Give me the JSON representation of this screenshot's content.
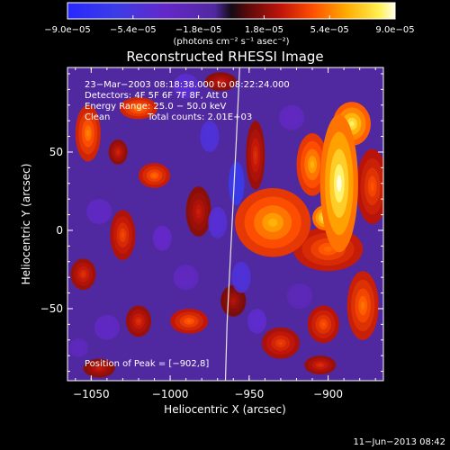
{
  "chart_data": {
    "type": "heatmap",
    "title": "Reconstructed RHESSI Image",
    "xlabel": "Heliocentric X (arcsec)",
    "ylabel": "Heliocentric Y (arcsec)",
    "xlim": [
      -1065,
      -865
    ],
    "ylim": [
      -96,
      104
    ],
    "xticks": [
      {
        "value": -1050,
        "label": "−1050"
      },
      {
        "value": -1000,
        "label": "−1000"
      },
      {
        "value": -950,
        "label": "−950"
      },
      {
        "value": -900,
        "label": "−900"
      }
    ],
    "yticks": [
      {
        "value": 50,
        "label": "50"
      },
      {
        "value": 0,
        "label": "0"
      },
      {
        "value": -50,
        "label": "−50"
      }
    ],
    "colorbar": {
      "range": [
        -9e-05,
        9e-05
      ],
      "unit_label": "(photons cm⁻² s⁻¹ asec⁻²)",
      "ticks": [
        {
          "value": -9e-05,
          "label": "−9.0e−05"
        },
        {
          "value": -5.4e-05,
          "label": "−5.4e−05"
        },
        {
          "value": -1.8e-05,
          "label": "−1.8e−05"
        },
        {
          "value": 1.8e-05,
          "label": "1.8e−05"
        },
        {
          "value": 5.4e-05,
          "label": "5.4e−05"
        },
        {
          "value": 9e-05,
          "label": "9.0e−05"
        }
      ]
    },
    "annotations": {
      "time_range": "23−Mar−2003 08:18:38.000 to 08:22:24.000",
      "detectors": "Detectors: 4F 5F 6F 7F 8F, Att 0",
      "energy_range": "Energy Range: 25.0 − 50.0 keV",
      "method": "Clean",
      "total_counts": "Total counts: 2.01E+03",
      "peak": "Position of Peak = [−902,8]"
    },
    "limb_curve": [
      [
        -956,
        104
      ],
      [
        -958,
        60
      ],
      [
        -960,
        20
      ],
      [
        -962,
        -20
      ],
      [
        -964,
        -60
      ],
      [
        -965,
        -96
      ]
    ],
    "blobs": [
      {
        "x": -893,
        "y": 30,
        "w": 12,
        "h": 44,
        "v": 9e-05
      },
      {
        "x": -902,
        "y": 8,
        "w": 8,
        "h": 8,
        "v": 8.8e-05
      },
      {
        "x": -885,
        "y": 68,
        "w": 12,
        "h": 14,
        "v": 8.2e-05
      },
      {
        "x": -910,
        "y": 42,
        "w": 10,
        "h": 20,
        "v": 6.5e-05
      },
      {
        "x": -935,
        "y": 5,
        "w": 24,
        "h": 22,
        "v": 6.5e-05
      },
      {
        "x": -900,
        "y": -12,
        "w": 22,
        "h": 14,
        "v": 5e-05
      },
      {
        "x": -872,
        "y": 28,
        "w": 10,
        "h": 24,
        "v": 4.5e-05
      },
      {
        "x": -878,
        "y": -48,
        "w": 10,
        "h": 22,
        "v": 5.2e-05
      },
      {
        "x": -903,
        "y": -60,
        "w": 10,
        "h": 12,
        "v": 4.5e-05
      },
      {
        "x": -930,
        "y": -72,
        "w": 12,
        "h": 10,
        "v": 4e-05
      },
      {
        "x": -905,
        "y": -86,
        "w": 10,
        "h": 6,
        "v": 3.5e-05
      },
      {
        "x": -946,
        "y": 48,
        "w": 6,
        "h": 22,
        "v": 3.5e-05
      },
      {
        "x": -1052,
        "y": 62,
        "w": 8,
        "h": 18,
        "v": 5.5e-05
      },
      {
        "x": -1020,
        "y": 78,
        "w": 12,
        "h": 7,
        "v": 5.5e-05
      },
      {
        "x": -1010,
        "y": 35,
        "w": 10,
        "h": 8,
        "v": 5e-05
      },
      {
        "x": -1033,
        "y": 50,
        "w": 6,
        "h": 8,
        "v": 3.2e-05
      },
      {
        "x": -1030,
        "y": -3,
        "w": 8,
        "h": 16,
        "v": 4.2e-05
      },
      {
        "x": -982,
        "y": 12,
        "w": 8,
        "h": 16,
        "v": 3e-05
      },
      {
        "x": -988,
        "y": -58,
        "w": 12,
        "h": 8,
        "v": 4.8e-05
      },
      {
        "x": -1020,
        "y": -58,
        "w": 8,
        "h": 10,
        "v": 3.5e-05
      },
      {
        "x": -1055,
        "y": -28,
        "w": 8,
        "h": 10,
        "v": 3.6e-05
      },
      {
        "x": -1045,
        "y": -88,
        "w": 10,
        "h": 6,
        "v": 3e-05
      },
      {
        "x": -960,
        "y": -45,
        "w": 8,
        "h": 10,
        "v": 2.5e-05
      },
      {
        "x": -968,
        "y": 95,
        "w": 10,
        "h": 6,
        "v": 3e-05
      },
      {
        "x": -958,
        "y": 30,
        "w": 5,
        "h": 14,
        "v": -6.5e-05
      },
      {
        "x": -975,
        "y": 60,
        "w": 6,
        "h": 10,
        "v": -5e-05
      },
      {
        "x": -970,
        "y": 5,
        "w": 6,
        "h": 10,
        "v": -4.5e-05
      },
      {
        "x": -955,
        "y": -30,
        "w": 6,
        "h": 10,
        "v": -5e-05
      },
      {
        "x": -990,
        "y": 92,
        "w": 8,
        "h": 8,
        "v": -4.2e-05
      },
      {
        "x": -1005,
        "y": -5,
        "w": 6,
        "h": 8,
        "v": -3.6e-05
      },
      {
        "x": -1045,
        "y": 12,
        "w": 8,
        "h": 8,
        "v": -3.2e-05
      },
      {
        "x": -1040,
        "y": -62,
        "w": 8,
        "h": 8,
        "v": -3.2e-05
      },
      {
        "x": -945,
        "y": -58,
        "w": 6,
        "h": 8,
        "v": -4e-05
      },
      {
        "x": -990,
        "y": -30,
        "w": 8,
        "h": 8,
        "v": -3e-05
      },
      {
        "x": -923,
        "y": 72,
        "w": 8,
        "h": 8,
        "v": -3e-05
      },
      {
        "x": -918,
        "y": -42,
        "w": 8,
        "h": 8,
        "v": -2.5e-05
      },
      {
        "x": -1058,
        "y": -75,
        "w": 6,
        "h": 6,
        "v": -2.8e-05
      }
    ]
  },
  "footer_date": "11−Jun−2013 08:42"
}
